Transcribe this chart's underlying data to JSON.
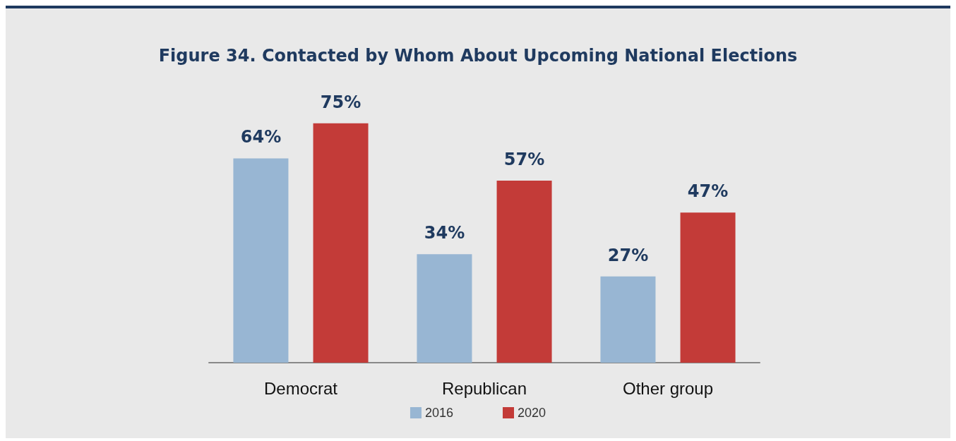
{
  "chart_data": {
    "type": "bar",
    "title": "Figure 34. Contacted by Whom About Upcoming National Elections",
    "categories": [
      "Democrat",
      "Republican",
      "Other group"
    ],
    "series": [
      {
        "name": "2016",
        "color": "#98b6d3",
        "values": [
          64,
          34,
          27
        ],
        "value_labels": [
          "64%",
          "34%",
          "27%"
        ]
      },
      {
        "name": "2020",
        "color": "#c33b38",
        "values": [
          75,
          57,
          47
        ],
        "value_labels": [
          "75%",
          "57%",
          "47%"
        ]
      }
    ],
    "legend": "bottom"
  }
}
